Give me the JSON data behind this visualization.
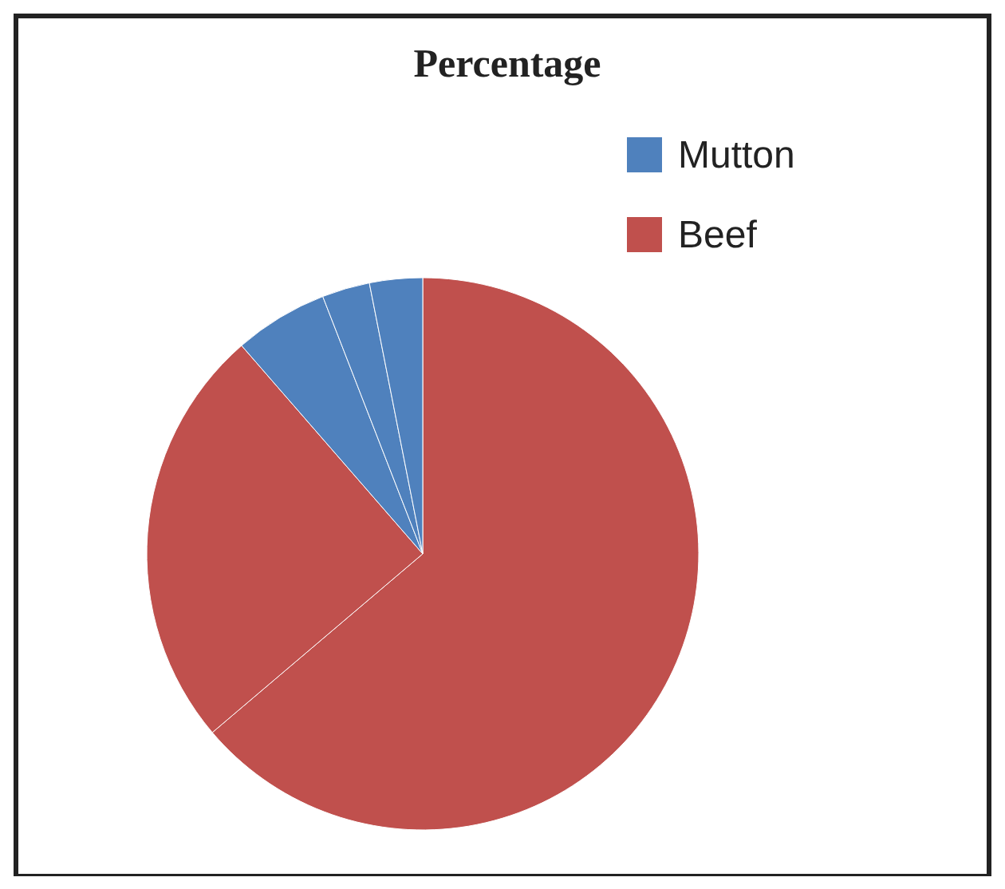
{
  "chart_data": {
    "type": "pie",
    "title": "Percentage",
    "categories": [
      "Beef",
      null,
      "Mutton",
      null,
      null
    ],
    "values": [
      63.8,
      24.8,
      5.5,
      2.8,
      3.1
    ],
    "colors": [
      "#c0504d",
      "#c0504d",
      "#4f81bd",
      "#4f81bd",
      "#4f81bd"
    ],
    "legend": "top right"
  }
}
